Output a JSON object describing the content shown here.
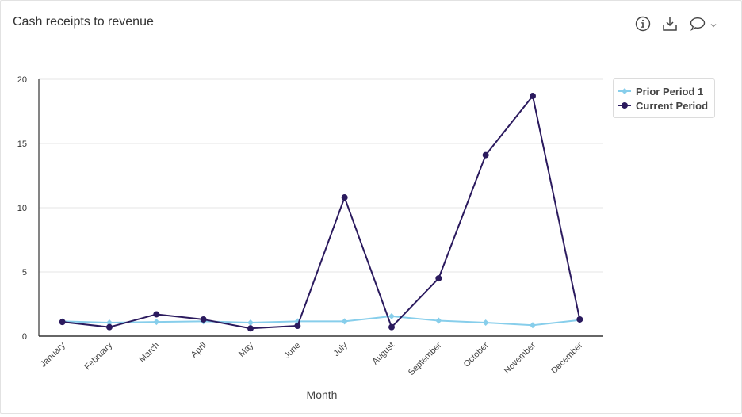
{
  "header": {
    "title": "Cash receipts to revenue",
    "icons": [
      "info-icon",
      "download-icon",
      "comment-icon",
      "chevron-down-icon"
    ]
  },
  "colors": {
    "prior": "#87ceeb",
    "current": "#2b1a5e",
    "grid": "#e6e6e6",
    "axis": "#333333"
  },
  "chart_data": {
    "type": "line",
    "title": "",
    "xlabel": "Month",
    "ylabel": "",
    "ylim": [
      0,
      20
    ],
    "yticks": [
      0,
      5,
      10,
      15,
      20
    ],
    "grid": true,
    "legend_position": "top-right",
    "categories": [
      "January",
      "February",
      "March",
      "April",
      "May",
      "June",
      "July",
      "August",
      "September",
      "October",
      "November",
      "December"
    ],
    "series": [
      {
        "name": "Prior Period 1",
        "marker": "diamond",
        "values": [
          1.15,
          1.05,
          1.1,
          1.15,
          1.05,
          1.15,
          1.15,
          1.55,
          1.2,
          1.05,
          0.85,
          1.25
        ]
      },
      {
        "name": "Current Period",
        "marker": "circle",
        "values": [
          1.1,
          0.7,
          1.7,
          1.3,
          0.6,
          0.8,
          10.8,
          0.7,
          4.5,
          14.1,
          18.7,
          1.3
        ]
      }
    ]
  }
}
